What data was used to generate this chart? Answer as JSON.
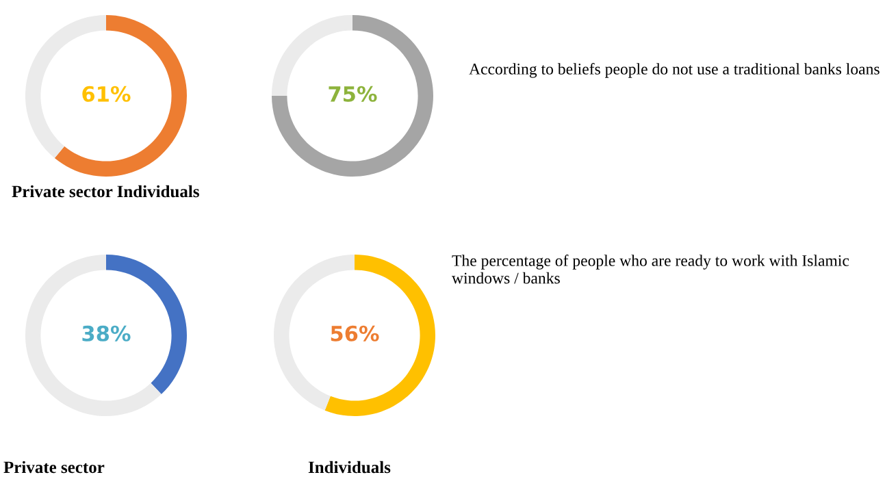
{
  "chart_data": [
    {
      "type": "donut",
      "categories": [
        null,
        null
      ],
      "values": [
        61,
        39
      ],
      "colors": [
        "#ed7d31",
        "#ebebeb"
      ],
      "value_labels": [
        "61%",
        null
      ],
      "title": "Private sector Individuals"
    },
    {
      "type": "donut",
      "categories": [
        null,
        null
      ],
      "values": [
        75,
        25
      ],
      "colors": [
        "#a5a5a5",
        "#ebebeb"
      ],
      "value_labels": [
        "75%",
        null
      ]
    },
    {
      "type": "other",
      "annotations": [
        "According to beliefs people do not use a traditional banks loans"
      ]
    },
    {
      "type": "donut",
      "categories": [
        null,
        null
      ],
      "values": [
        38,
        62
      ],
      "colors": [
        "#4472c4",
        "#ebebeb"
      ],
      "value_labels": [
        "38%",
        null
      ],
      "title": "Private sector"
    },
    {
      "type": "donut",
      "categories": [
        null,
        null
      ],
      "values": [
        56,
        44
      ],
      "colors": [
        "#ffc000",
        "#ebebeb"
      ],
      "value_labels": [
        "56%",
        null
      ],
      "title": "Individuals"
    },
    {
      "type": "other",
      "annotations": [
        "The percentage of people who are ready to work with Islamic windows / banks"
      ]
    }
  ]
}
